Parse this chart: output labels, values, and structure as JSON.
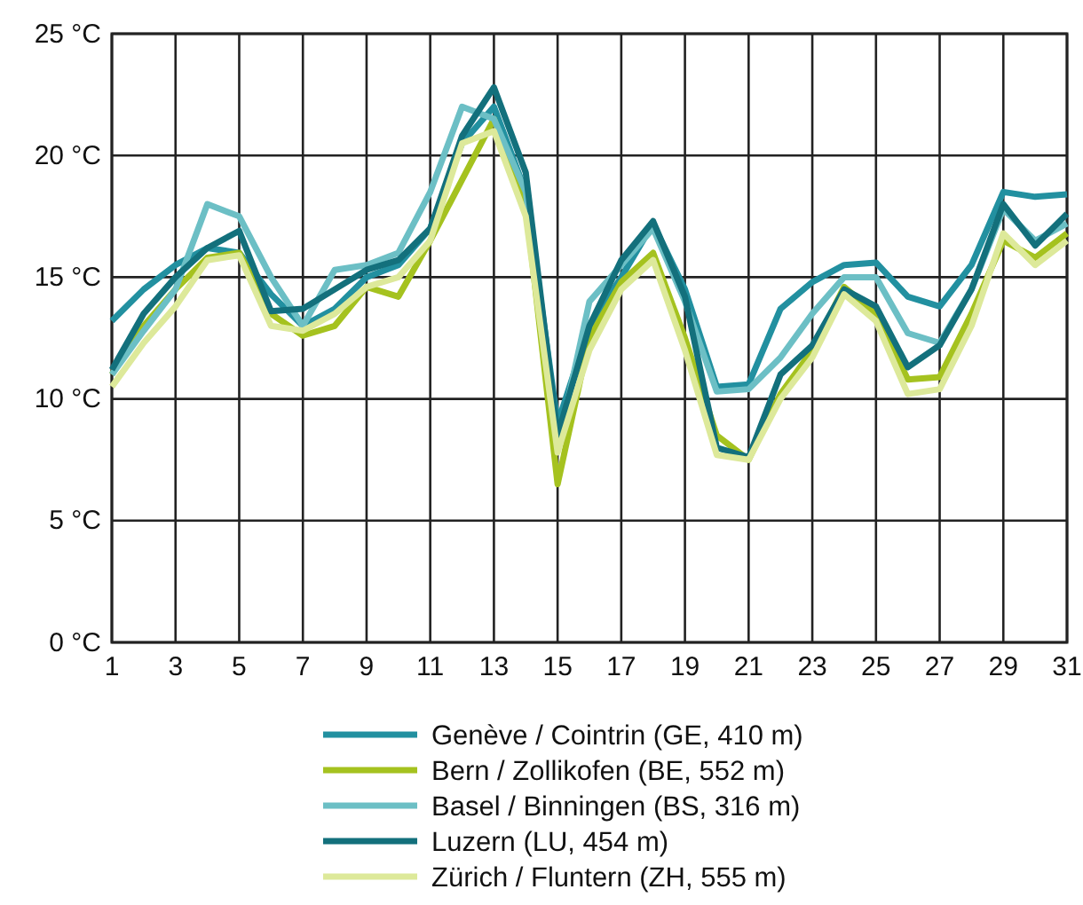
{
  "chart_data": {
    "type": "line",
    "x": [
      1,
      2,
      3,
      4,
      5,
      6,
      7,
      8,
      9,
      10,
      11,
      12,
      13,
      14,
      15,
      16,
      17,
      18,
      19,
      20,
      21,
      22,
      23,
      24,
      25,
      26,
      27,
      28,
      29,
      30,
      31
    ],
    "xlim": [
      1,
      31
    ],
    "xticks": [
      1,
      3,
      5,
      7,
      9,
      11,
      13,
      15,
      17,
      19,
      21,
      23,
      25,
      27,
      29,
      31
    ],
    "ylim": [
      0,
      25
    ],
    "yticks": [
      {
        "value": 0,
        "label": "0 °C"
      },
      {
        "value": 5,
        "label": "5 °C"
      },
      {
        "value": 10,
        "label": "10 °C"
      },
      {
        "value": 15,
        "label": "15 °C"
      },
      {
        "value": 20,
        "label": "20 °C"
      },
      {
        "value": 25,
        "label": "25 °C"
      }
    ],
    "grid": true,
    "legend": "bottom",
    "marker": "none",
    "line_style": "solid",
    "series": [
      {
        "name": "Genève / Cointrin (GE, 410 m)",
        "color": "#2290a0",
        "values": [
          13.2,
          14.5,
          15.5,
          16.2,
          16.0,
          14.3,
          13.0,
          13.7,
          15.0,
          15.5,
          17.0,
          20.5,
          22.0,
          18.5,
          9.0,
          13.0,
          15.0,
          17.2,
          14.5,
          10.5,
          10.6,
          13.7,
          14.8,
          15.5,
          15.6,
          14.2,
          13.8,
          15.5,
          18.5,
          18.3,
          18.4
        ]
      },
      {
        "name": "Bern / Zollikofen (BE, 552 m)",
        "color": "#a5c21f",
        "values": [
          11.0,
          13.0,
          14.5,
          15.8,
          16.0,
          13.5,
          12.6,
          13.0,
          14.6,
          14.2,
          16.5,
          19.0,
          21.5,
          18.0,
          6.5,
          12.5,
          14.8,
          16.0,
          12.5,
          8.5,
          7.5,
          10.2,
          12.0,
          14.6,
          13.5,
          10.8,
          10.9,
          13.5,
          16.5,
          15.8,
          16.8
        ]
      },
      {
        "name": "Basel / Binningen (BS, 316 m)",
        "color": "#6cbfc5",
        "values": [
          11.0,
          12.8,
          14.5,
          18.0,
          17.5,
          15.0,
          13.0,
          15.3,
          15.5,
          16.0,
          18.5,
          22.0,
          21.5,
          18.5,
          8.0,
          14.0,
          15.5,
          17.0,
          14.0,
          10.3,
          10.4,
          11.7,
          13.5,
          15.0,
          15.0,
          12.7,
          12.3,
          14.5,
          17.8,
          16.5,
          17.2
        ]
      },
      {
        "name": "Luzern (LU, 454 m)",
        "color": "#13707c",
        "values": [
          11.2,
          13.5,
          15.0,
          16.2,
          16.9,
          13.6,
          13.7,
          14.5,
          15.3,
          15.7,
          17.0,
          20.8,
          22.8,
          19.3,
          8.5,
          13.0,
          15.7,
          17.3,
          14.2,
          8.0,
          7.6,
          11.0,
          12.2,
          14.5,
          13.8,
          11.3,
          12.2,
          14.5,
          18.0,
          16.3,
          17.6
        ]
      },
      {
        "name": "Zürich / Fluntern (ZH, 555 m)",
        "color": "#dde99a",
        "values": [
          10.5,
          12.3,
          13.8,
          15.7,
          15.9,
          13.0,
          12.8,
          13.5,
          14.6,
          15.0,
          16.5,
          20.5,
          21.0,
          17.5,
          7.8,
          12.0,
          14.5,
          15.7,
          12.0,
          7.7,
          7.5,
          10.0,
          11.7,
          14.3,
          13.2,
          10.2,
          10.4,
          13.0,
          16.8,
          15.5,
          16.5
        ]
      }
    ]
  }
}
